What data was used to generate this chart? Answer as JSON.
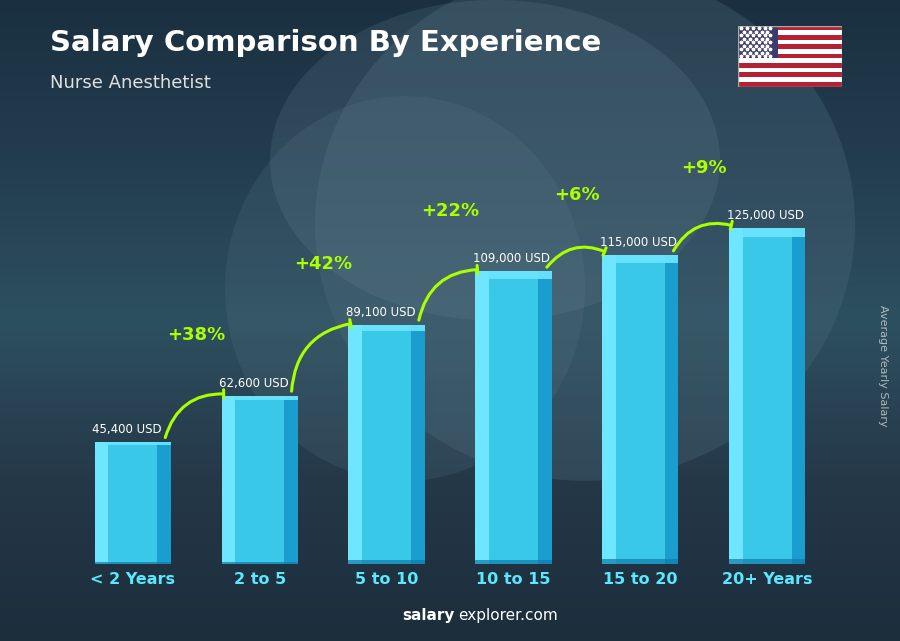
{
  "title": "Salary Comparison By Experience",
  "subtitle": "Nurse Anesthetist",
  "categories": [
    "< 2 Years",
    "2 to 5",
    "5 to 10",
    "10 to 15",
    "15 to 20",
    "20+ Years"
  ],
  "values": [
    45400,
    62600,
    89100,
    109000,
    115000,
    125000
  ],
  "salary_labels": [
    "45,400 USD",
    "62,600 USD",
    "89,100 USD",
    "109,000 USD",
    "115,000 USD",
    "125,000 USD"
  ],
  "pct_labels": [
    null,
    "+38%",
    "+42%",
    "+22%",
    "+6%",
    "+9%"
  ],
  "bar_color_light": "#6ee6ff",
  "bar_color_mid": "#3ac8e8",
  "bar_color_dark": "#1a9ecf",
  "bar_color_edge": "#0f7aaa",
  "bg_color": "#2a4a5a",
  "title_color": "#ffffff",
  "subtitle_color": "#e0e0e0",
  "salary_label_color": "#ffffff",
  "pct_color": "#aaff00",
  "xlabel_color": "#5ae8ff",
  "ylabel_text": "Average Yearly Salary",
  "watermark_bold": "salary",
  "watermark_normal": "explorer.com",
  "ylim": [
    0,
    148000
  ],
  "bar_width": 0.6,
  "n_bars": 6
}
